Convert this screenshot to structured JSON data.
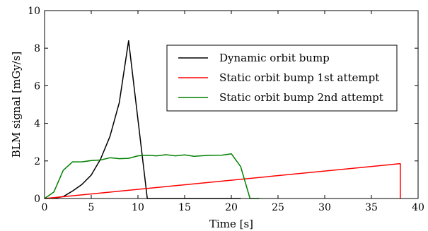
{
  "chart_data": {
    "type": "line",
    "xlabel": "Time [s]",
    "ylabel": "BLM signal [mGy/s]",
    "xlim": [
      0,
      40
    ],
    "ylim": [
      0,
      10
    ],
    "xticks": [
      0,
      5,
      10,
      15,
      20,
      25,
      30,
      35,
      40
    ],
    "yticks": [
      0,
      2,
      4,
      6,
      8,
      10
    ],
    "grid": false,
    "legend": "upper-right",
    "series": [
      {
        "name": "Dynamic orbit bump",
        "color": "#000000",
        "x": [
          0,
          1,
          2,
          3,
          4,
          5,
          6,
          7,
          8,
          9,
          10,
          11,
          11.5,
          21
        ],
        "y": [
          0,
          0.02,
          0.1,
          0.4,
          0.75,
          1.25,
          2.1,
          3.3,
          5.1,
          8.4,
          4.2,
          0,
          0,
          0
        ]
      },
      {
        "name": "Static orbit bump 1st attempt",
        "color": "#ff0000",
        "x": [
          0,
          38,
          38.1,
          38.1
        ],
        "y": [
          0,
          1.85,
          1.85,
          0
        ]
      },
      {
        "name": "Static orbit bump 2nd attempt",
        "color": "#008000",
        "x": [
          0,
          1,
          2,
          3,
          4,
          5,
          6,
          7,
          8,
          9,
          10,
          11,
          12,
          13,
          14,
          15,
          16,
          17,
          18,
          19,
          20,
          21,
          22,
          23
        ],
        "y": [
          0,
          0.35,
          1.5,
          1.95,
          1.95,
          2.02,
          2.05,
          2.17,
          2.12,
          2.14,
          2.27,
          2.3,
          2.27,
          2.33,
          2.27,
          2.32,
          2.25,
          2.28,
          2.3,
          2.31,
          2.38,
          1.7,
          0,
          0
        ]
      }
    ]
  }
}
